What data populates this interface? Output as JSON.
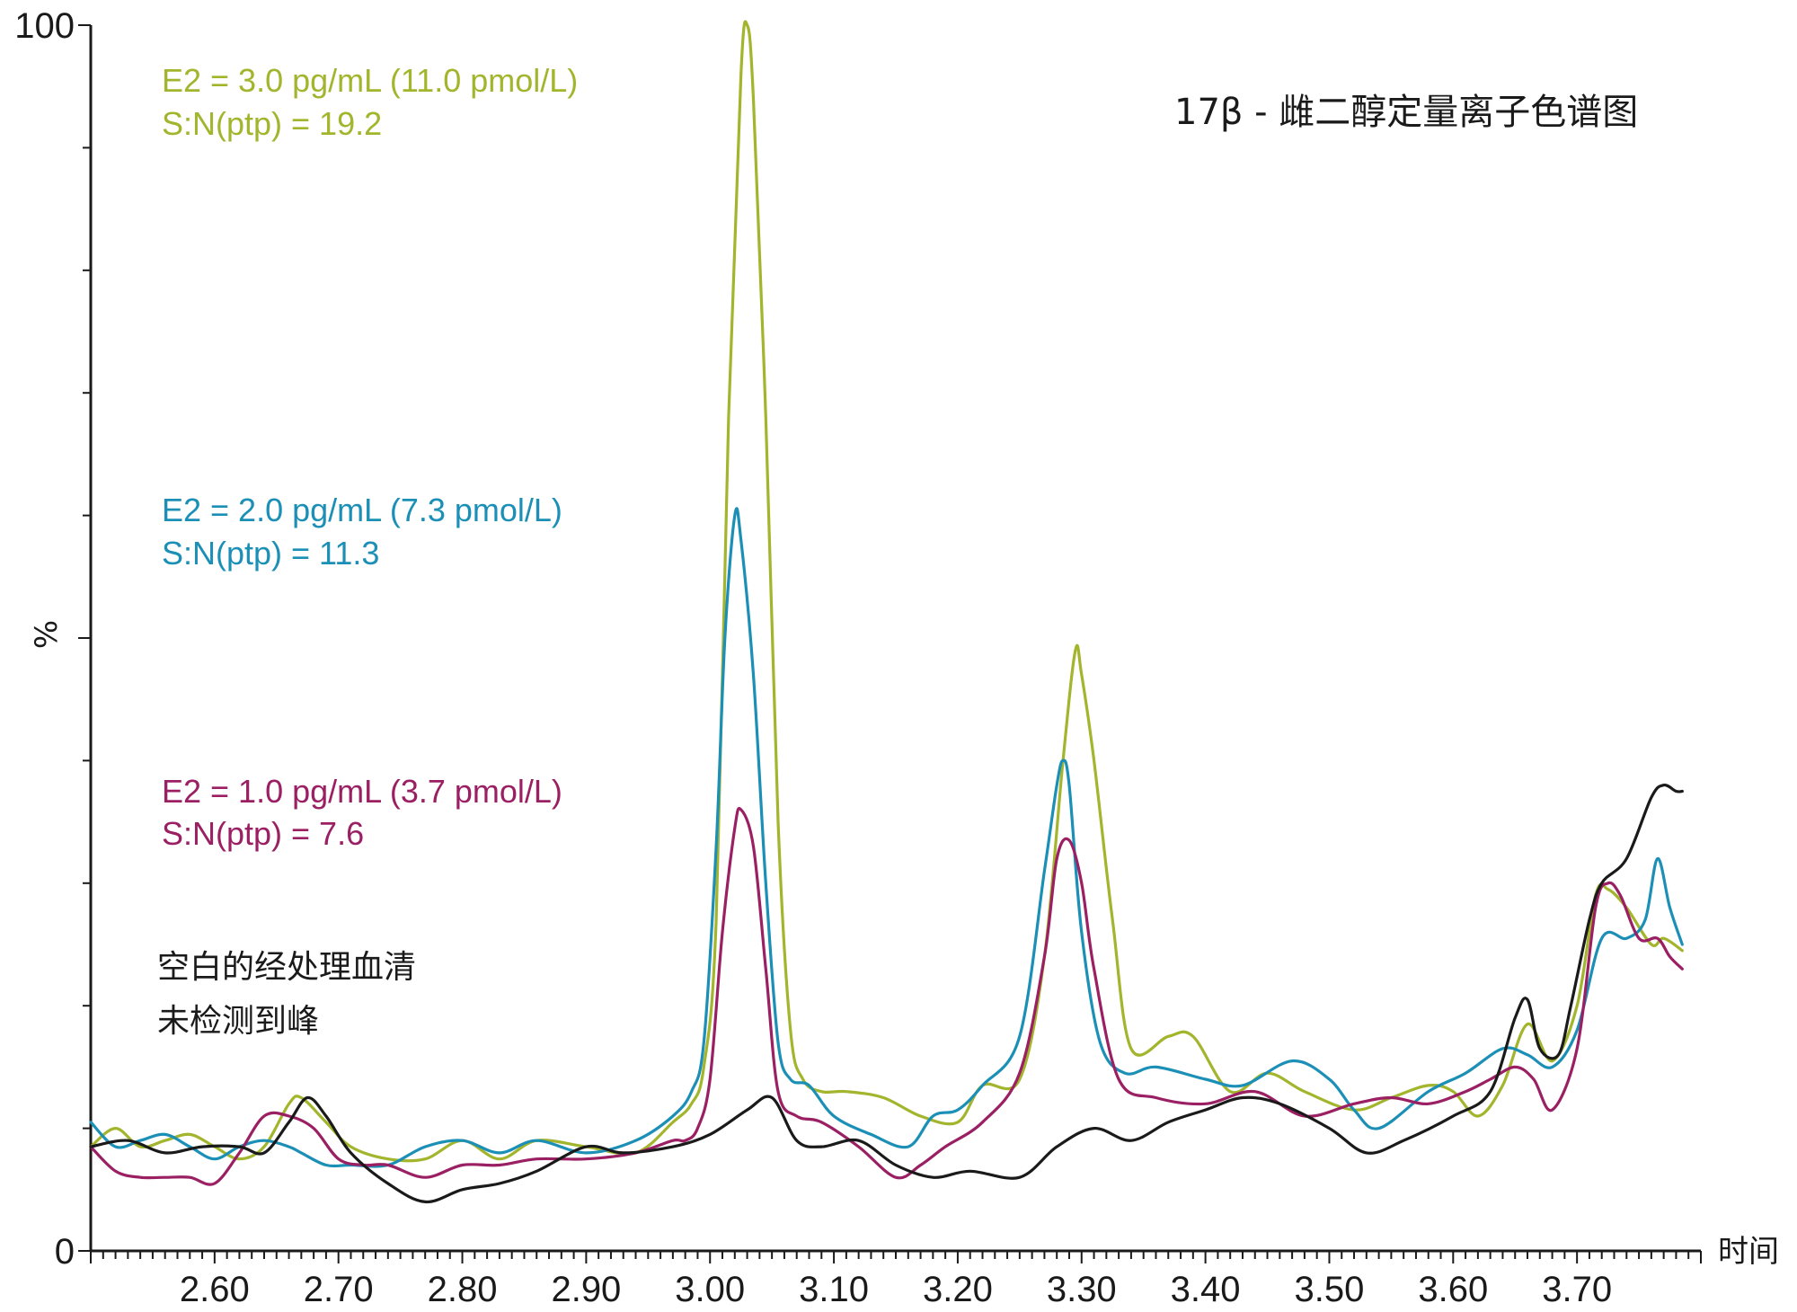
{
  "chart_data": {
    "type": "line",
    "title": "17β - 雌二醇定量离子色谱图",
    "xlabel": "时间",
    "ylabel": "%",
    "xlim": [
      2.5,
      3.8
    ],
    "ylim": [
      0,
      100
    ],
    "x_ticks": [
      "2.60",
      "2.70",
      "2.80",
      "2.90",
      "3.00",
      "3.10",
      "3.20",
      "3.30",
      "3.40",
      "3.50",
      "3.60",
      "3.70"
    ],
    "y_ticks": [
      "0",
      "100"
    ],
    "annotations": {
      "blank_line1": "空白的经处理血清",
      "blank_line2": "未检测到峰"
    },
    "series": [
      {
        "name": "E2 = 3.0 pg/mL (11.0 pmol/L)",
        "snr": "S:N(ptp) = 19.2",
        "color": "#a3b52d",
        "x": [
          2.5,
          2.52,
          2.54,
          2.56,
          2.58,
          2.6,
          2.62,
          2.64,
          2.66,
          2.67,
          2.69,
          2.71,
          2.74,
          2.77,
          2.8,
          2.83,
          2.86,
          2.9,
          2.94,
          2.97,
          2.985,
          2.995,
          3.005,
          3.015,
          3.025,
          3.03,
          3.035,
          3.045,
          3.055,
          3.065,
          3.075,
          3.09,
          3.11,
          3.14,
          3.17,
          3.2,
          3.22,
          3.25,
          3.27,
          3.285,
          3.295,
          3.3,
          3.31,
          3.325,
          3.34,
          3.37,
          3.39,
          3.42,
          3.45,
          3.48,
          3.52,
          3.55,
          3.58,
          3.6,
          3.62,
          3.64,
          3.66,
          3.68,
          3.7,
          3.715,
          3.725,
          3.74,
          3.76,
          3.77,
          3.785
        ],
        "y": [
          8.5,
          10,
          8.5,
          9,
          9.5,
          8.5,
          7.5,
          8.5,
          12,
          12.5,
          10.5,
          8.5,
          7.5,
          7.5,
          9,
          7.5,
          9,
          8.5,
          8,
          10.5,
          12,
          15,
          27,
          68,
          96,
          100,
          94,
          68,
          35,
          18,
          14,
          13,
          13,
          12.5,
          11,
          10.5,
          13.5,
          14,
          24,
          40,
          49,
          47,
          40,
          27,
          16.5,
          17.5,
          17.5,
          13,
          14.5,
          13,
          11.5,
          12.5,
          13.5,
          13,
          11,
          13.5,
          18.5,
          15.5,
          20,
          29,
          29.5,
          28,
          25,
          25.5,
          24.5
        ]
      },
      {
        "name": "E2 = 2.0 pg/mL (7.3 pmol/L)",
        "snr": "S:N(ptp) = 11.3",
        "color": "#1b8fb6",
        "x": [
          2.5,
          2.52,
          2.54,
          2.56,
          2.58,
          2.6,
          2.62,
          2.64,
          2.66,
          2.67,
          2.69,
          2.71,
          2.74,
          2.77,
          2.8,
          2.83,
          2.86,
          2.9,
          2.94,
          2.97,
          2.985,
          2.995,
          3.005,
          3.012,
          3.02,
          3.025,
          3.035,
          3.045,
          3.055,
          3.065,
          3.08,
          3.1,
          3.13,
          3.16,
          3.18,
          3.2,
          3.22,
          3.25,
          3.27,
          3.28,
          3.285,
          3.29,
          3.3,
          3.315,
          3.335,
          3.36,
          3.4,
          3.43,
          3.47,
          3.5,
          3.52,
          3.54,
          3.58,
          3.61,
          3.64,
          3.66,
          3.68,
          3.7,
          3.72,
          3.74,
          3.755,
          3.765,
          3.775,
          3.785
        ],
        "y": [
          10.5,
          8.5,
          9,
          9.5,
          8.5,
          7.5,
          8.5,
          9,
          8.5,
          8,
          7,
          7,
          7,
          8.5,
          9,
          8,
          9,
          8,
          9,
          11,
          13,
          17,
          33,
          50,
          60,
          58,
          47,
          30,
          17,
          14,
          13.5,
          11,
          9.5,
          8.5,
          11,
          11.5,
          13.5,
          17.5,
          31,
          38,
          40,
          38,
          26,
          17,
          14.5,
          15,
          14,
          13.5,
          15.5,
          14,
          11.5,
          10,
          13,
          14.5,
          16.5,
          16,
          15,
          18,
          25.5,
          25.5,
          27,
          32,
          28,
          25
        ]
      },
      {
        "name": "E2 = 1.0 pg/mL (3.7 pmol/L)",
        "snr": "S:N(ptp) = 7.6",
        "color": "#9a1f63",
        "x": [
          2.5,
          2.52,
          2.54,
          2.56,
          2.58,
          2.6,
          2.62,
          2.64,
          2.66,
          2.68,
          2.7,
          2.72,
          2.74,
          2.77,
          2.8,
          2.83,
          2.86,
          2.9,
          2.94,
          2.97,
          2.98,
          2.99,
          3.0,
          3.01,
          3.02,
          3.025,
          3.035,
          3.045,
          3.055,
          3.07,
          3.09,
          3.12,
          3.15,
          3.17,
          3.19,
          3.22,
          3.25,
          3.27,
          3.28,
          3.29,
          3.3,
          3.31,
          3.33,
          3.36,
          3.4,
          3.44,
          3.48,
          3.52,
          3.55,
          3.58,
          3.61,
          3.63,
          3.65,
          3.665,
          3.68,
          3.7,
          3.715,
          3.725,
          3.735,
          3.75,
          3.765,
          3.775,
          3.785
        ],
        "y": [
          8.5,
          6.5,
          6,
          6,
          6,
          5.5,
          8,
          11,
          11,
          10,
          7.5,
          7,
          7,
          6,
          7,
          7,
          7.5,
          7.5,
          8,
          9,
          9,
          10,
          14,
          26,
          34.5,
          36,
          33,
          23,
          13,
          11,
          10.5,
          8.5,
          6,
          7,
          8.5,
          10.5,
          14.5,
          24,
          32,
          33.5,
          30,
          23,
          14,
          12.5,
          12,
          13,
          11,
          12,
          12.5,
          12,
          13,
          14,
          15,
          14,
          11.5,
          16.5,
          28,
          30,
          29,
          25.5,
          25.5,
          24,
          23
        ]
      },
      {
        "name": "空白的经处理血清",
        "color": "#1a1a1a",
        "x": [
          2.5,
          2.53,
          2.56,
          2.59,
          2.62,
          2.64,
          2.66,
          2.675,
          2.69,
          2.71,
          2.74,
          2.77,
          2.8,
          2.83,
          2.86,
          2.9,
          2.93,
          2.97,
          3.0,
          3.03,
          3.05,
          3.07,
          3.09,
          3.12,
          3.15,
          3.18,
          3.21,
          3.25,
          3.28,
          3.31,
          3.34,
          3.37,
          3.4,
          3.43,
          3.46,
          3.5,
          3.53,
          3.56,
          3.6,
          3.63,
          3.65,
          3.66,
          3.67,
          3.685,
          3.695,
          3.71,
          3.72,
          3.74,
          3.76,
          3.77,
          3.78,
          3.785
        ],
        "y": [
          8.5,
          9,
          8,
          8.5,
          8.5,
          8,
          10.5,
          12.5,
          11,
          8,
          5.5,
          4,
          5,
          5.5,
          6.5,
          8.5,
          8,
          8.5,
          9.5,
          11.5,
          12.5,
          9,
          8.5,
          9,
          7,
          6,
          6.5,
          6,
          8.5,
          10,
          9,
          10.5,
          11.5,
          12.5,
          12,
          10,
          8,
          9,
          11,
          13,
          19,
          20.5,
          16.5,
          16,
          20,
          27,
          30,
          32,
          37,
          38,
          37.5,
          37.5
        ]
      }
    ]
  }
}
